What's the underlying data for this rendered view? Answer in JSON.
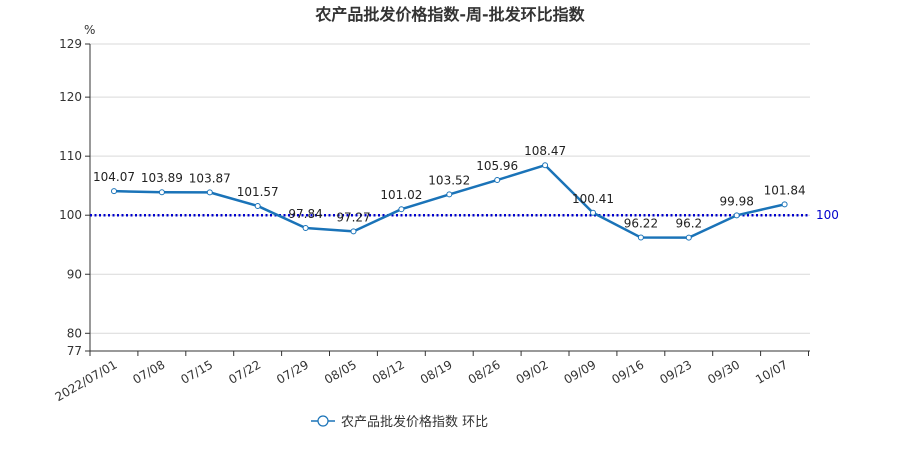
{
  "chart_data": {
    "type": "line",
    "title": "农产品批发价格指数-周-批发环比指数",
    "y_unit": "%",
    "ylim": [
      77,
      129
    ],
    "y_ticks": [
      77,
      80,
      90,
      100,
      110,
      120,
      129
    ],
    "grid": true,
    "legend_position": "bottom-center",
    "categories": [
      "2022/07/01",
      "07/08",
      "07/15",
      "07/22",
      "07/29",
      "08/05",
      "08/12",
      "08/19",
      "08/26",
      "09/02",
      "09/09",
      "09/16",
      "09/23",
      "09/30",
      "10/07"
    ],
    "series": [
      {
        "name": "农产品批发价格指数 环比",
        "color": "#1a73b8",
        "values": [
          104.07,
          103.89,
          103.87,
          101.57,
          97.84,
          97.27,
          101.02,
          103.52,
          105.96,
          108.47,
          100.41,
          96.22,
          96.2,
          99.98,
          101.84
        ],
        "labels": [
          "104.07",
          "103.89",
          "103.87",
          "101.57",
          "97.84",
          "97.27",
          "101.02",
          "103.52",
          "105.96",
          "108.47",
          "100.41",
          "96.22",
          "96.2",
          "99.98",
          "101.84"
        ]
      }
    ],
    "reference_line": {
      "value": 100,
      "label": "100",
      "color": "#0000cc"
    }
  }
}
